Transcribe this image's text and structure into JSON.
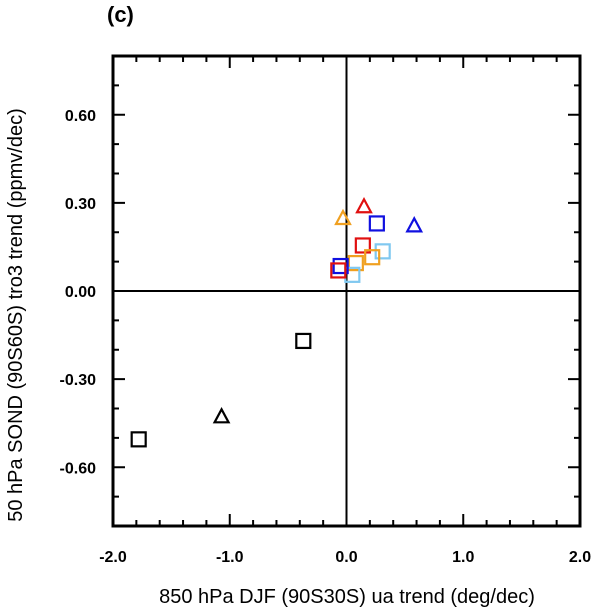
{
  "chart_data": {
    "type": "scatter",
    "panel_label": "(c)",
    "xlabel": "850 hPa DJF (90S30S) ua trend (deg/dec)",
    "ylabel": "50 hPa SOND (90S60S) tro3 trend (ppmv/dec)",
    "xlim": [
      -2.0,
      2.0
    ],
    "ylim": [
      -0.8,
      0.8
    ],
    "x_ticks": [
      -2.0,
      -1.0,
      0.0,
      1.0,
      2.0
    ],
    "x_tick_labels": [
      "-2.0",
      "-1.0",
      "0.0",
      "1.0",
      "2.0"
    ],
    "y_ticks": [
      -0.6,
      -0.3,
      0.0,
      0.3,
      0.6
    ],
    "y_tick_labels": [
      "-0.60",
      "-0.30",
      "0.00",
      "0.30",
      "0.60"
    ],
    "grid": false,
    "zero_lines": true,
    "points": [
      {
        "x": -1.78,
        "y": -0.505,
        "marker": "square",
        "color": "#000000"
      },
      {
        "x": -1.07,
        "y": -0.43,
        "marker": "triangle",
        "color": "#000000"
      },
      {
        "x": -0.37,
        "y": -0.17,
        "marker": "square",
        "color": "#000000"
      },
      {
        "x": -0.03,
        "y": 0.245,
        "marker": "triangle",
        "color": "#f0a020"
      },
      {
        "x": 0.15,
        "y": 0.285,
        "marker": "triangle",
        "color": "#e01010"
      },
      {
        "x": 0.58,
        "y": 0.22,
        "marker": "triangle",
        "color": "#1010e0"
      },
      {
        "x": 0.26,
        "y": 0.23,
        "marker": "square",
        "color": "#1010e0"
      },
      {
        "x": 0.14,
        "y": 0.155,
        "marker": "square",
        "color": "#e01010"
      },
      {
        "x": 0.31,
        "y": 0.135,
        "marker": "square",
        "color": "#80c8f0"
      },
      {
        "x": 0.22,
        "y": 0.115,
        "marker": "square",
        "color": "#f0a020"
      },
      {
        "x": 0.08,
        "y": 0.095,
        "marker": "square",
        "color": "#f0a020"
      },
      {
        "x": 0.05,
        "y": 0.055,
        "marker": "square",
        "color": "#80c8f0"
      },
      {
        "x": -0.05,
        "y": 0.085,
        "marker": "square",
        "color": "#1010e0"
      },
      {
        "x": -0.07,
        "y": 0.07,
        "marker": "square",
        "color": "#e01010"
      }
    ]
  }
}
